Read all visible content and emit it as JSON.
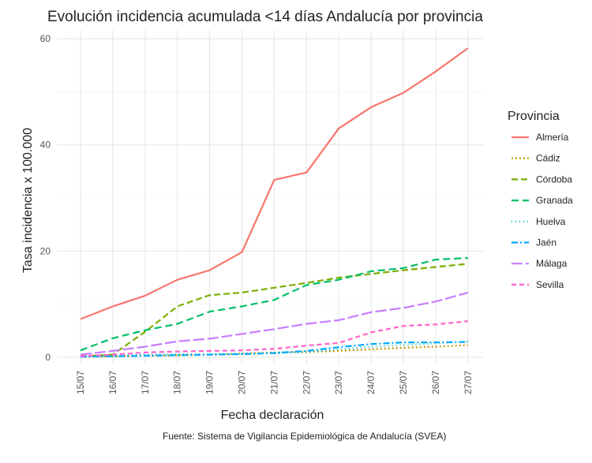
{
  "chart_data": {
    "type": "line",
    "title": "Evolución incidencia acumulada <14 días Andalucía por provincia",
    "xlabel": "Fecha declaración",
    "ylabel": "Tasa incidencia x 100.000",
    "caption": "Fuente: Sistema de Vigilancia Epidemiológica de Andalucía (SVEA)",
    "categories": [
      "15/07",
      "16/07",
      "17/07",
      "18/07",
      "19/07",
      "20/07",
      "21/07",
      "22/07",
      "23/07",
      "24/07",
      "25/07",
      "26/07",
      "27/07"
    ],
    "ylim": [
      0,
      60
    ],
    "yticks": [
      0,
      20,
      40,
      60
    ],
    "grid": true,
    "legend": {
      "title": "Provincia",
      "position": "right"
    },
    "series": [
      {
        "name": "Almería",
        "color": "#F8766D",
        "dash": "solid",
        "values": [
          7.2,
          9.6,
          11.6,
          14.6,
          16.4,
          19.8,
          33.4,
          34.8,
          43.1,
          47.1,
          49.8,
          53.8,
          58.2
        ]
      },
      {
        "name": "Cádiz",
        "color": "#CD9600",
        "dash": "dotted",
        "values": [
          0.1,
          0.2,
          0.3,
          0.4,
          0.5,
          0.7,
          0.9,
          1.0,
          1.2,
          1.5,
          1.8,
          2.0,
          2.3
        ]
      },
      {
        "name": "Córdoba",
        "color": "#7CAE00",
        "dash": "dashed-long",
        "values": [
          0.2,
          0.5,
          4.8,
          9.6,
          11.7,
          12.2,
          13.1,
          14.0,
          15.0,
          15.7,
          16.4,
          17.0,
          17.6
        ]
      },
      {
        "name": "Granada",
        "color": "#00BE67",
        "dash": "dashed",
        "values": [
          1.3,
          3.6,
          5.1,
          6.3,
          8.6,
          9.6,
          10.8,
          13.6,
          14.6,
          16.2,
          16.8,
          18.4,
          18.7
        ]
      },
      {
        "name": "Huelva",
        "color": "#00BFC4",
        "dash": "dotted-fine",
        "values": [
          0.1,
          0.3,
          0.5,
          0.6,
          0.6,
          0.7,
          0.8,
          1.0,
          1.5,
          2.0,
          2.3,
          2.6,
          3.0
        ]
      },
      {
        "name": "Jaén",
        "color": "#00A9FF",
        "dash": "dashdot",
        "values": [
          0.1,
          0.2,
          0.3,
          0.4,
          0.5,
          0.6,
          0.8,
          1.2,
          1.9,
          2.5,
          2.8,
          2.8,
          2.9
        ]
      },
      {
        "name": "Málaga",
        "color": "#C77CFF",
        "dash": "longdash",
        "values": [
          0.5,
          1.2,
          2.0,
          3.0,
          3.5,
          4.4,
          5.3,
          6.3,
          7.0,
          8.5,
          9.3,
          10.5,
          12.2
        ]
      },
      {
        "name": "Sevilla",
        "color": "#FF61CC",
        "dash": "dashed-mid",
        "values": [
          0.2,
          0.5,
          0.9,
          1.1,
          1.2,
          1.3,
          1.6,
          2.2,
          2.7,
          4.7,
          5.9,
          6.2,
          6.8
        ]
      }
    ]
  }
}
